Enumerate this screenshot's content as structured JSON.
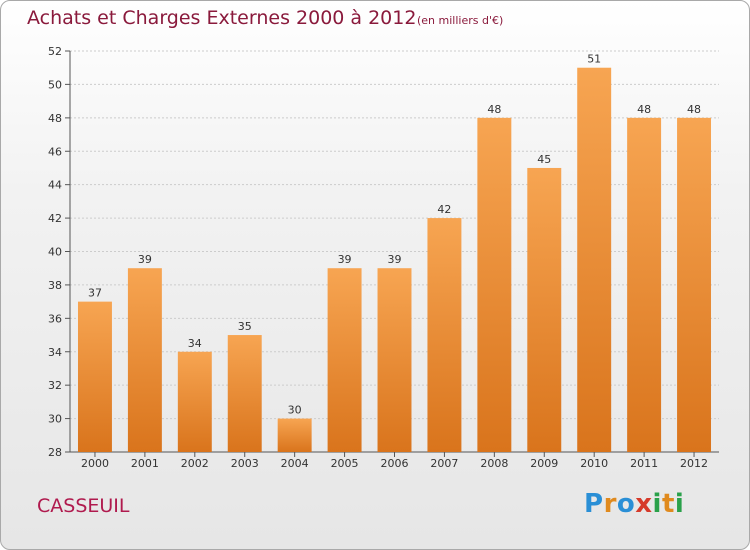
{
  "header": {
    "title": "Achats et Charges Externes 2000 à 2012",
    "subtitle": "(en milliers d'€)"
  },
  "commune": "CASSEUIL",
  "logo": {
    "text": "Proxiti",
    "parts": [
      "P",
      "r",
      "o",
      "x",
      "i",
      "t",
      "i"
    ]
  },
  "colors": {
    "bar_top": "#f7a552",
    "bar_bottom": "#d9741c",
    "title": "#8a1a3c",
    "commune": "#b01a4e"
  },
  "chart_data": {
    "type": "bar",
    "title": "Achats et Charges Externes 2000 à 2012",
    "subtitle": "(en milliers d'€)",
    "xlabel": "",
    "ylabel": "",
    "categories": [
      "2000",
      "2001",
      "2002",
      "2003",
      "2004",
      "2005",
      "2006",
      "2007",
      "2008",
      "2009",
      "2010",
      "2011",
      "2012"
    ],
    "values": [
      37,
      39,
      34,
      35,
      30,
      39,
      39,
      42,
      48,
      45,
      51,
      48,
      48
    ],
    "data_labels": [
      "37",
      "39",
      "34",
      "35",
      "30",
      "39",
      "39",
      "42",
      "48",
      "45",
      "51",
      "48",
      "48"
    ],
    "ylim": [
      28,
      52
    ],
    "yticks": [
      28,
      30,
      32,
      34,
      36,
      38,
      40,
      42,
      44,
      46,
      48,
      50,
      52
    ],
    "grid": true,
    "legend": "none"
  }
}
